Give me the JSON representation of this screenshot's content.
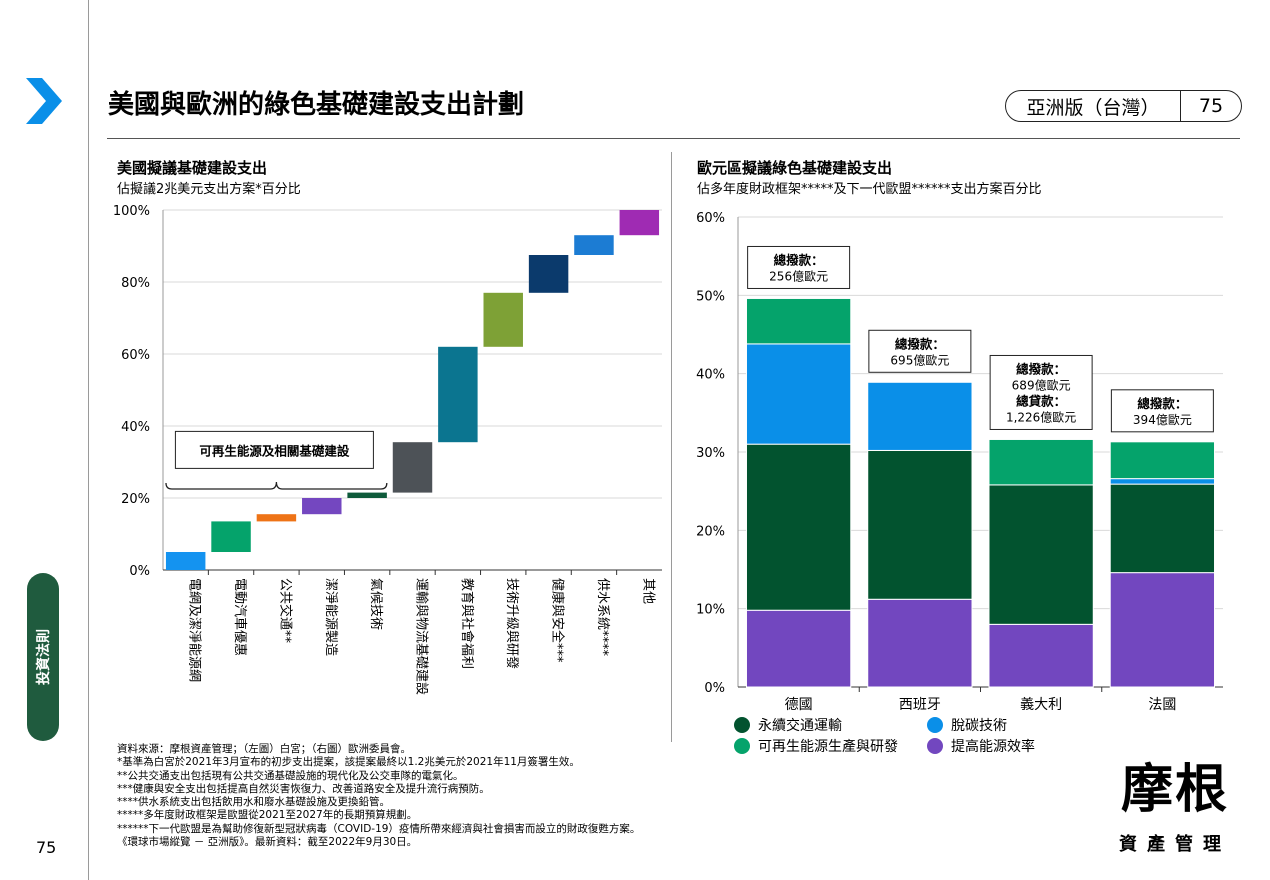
{
  "header": {
    "title": "美國與歐洲的綠色基礎建設支出計劃",
    "edition": "亞洲版（台灣）",
    "page": "75"
  },
  "sidebar": {
    "tab_label": "投資法則",
    "page_number": "75"
  },
  "colors": {
    "accent_blue": "#0a8fe8",
    "sidebar_tab": "#1f5b3e"
  },
  "left_chart": {
    "title": "美國擬議基礎建設支出",
    "subtitle": "佔擬議2兆美元支出方案*百分比",
    "bracket_label": "可再生能源及相關基礎建設"
  },
  "right_chart": {
    "title": "歐元區擬議綠色基礎建設支出",
    "subtitle": "佔多年度財政框架*****及下一代歐盟******支出方案百分比"
  },
  "chart_data": [
    {
      "type": "bar",
      "subtype": "waterfall",
      "ylim": [
        0,
        100
      ],
      "ytick_labels": [
        "0%",
        "20%",
        "40%",
        "60%",
        "80%",
        "100%"
      ],
      "grid": true,
      "categories": [
        "電網及潔淨能源網",
        "電動汽車優惠",
        "公共交通**",
        "潔淨能源製造",
        "氣候技術",
        "運輸與物流基礎建設",
        "教育與社會福利",
        "技術升級與研發",
        "健康與安全***",
        "供水系統****",
        "其他"
      ],
      "segments": [
        {
          "start": 0,
          "end": 5,
          "color": "#1493f0"
        },
        {
          "start": 5,
          "end": 13.5,
          "color": "#05a36b"
        },
        {
          "start": 13.5,
          "end": 15.5,
          "color": "#ee7316"
        },
        {
          "start": 15.5,
          "end": 20,
          "color": "#7447c0"
        },
        {
          "start": 20,
          "end": 21.5,
          "color": "#0e5a3a"
        },
        {
          "start": 21.5,
          "end": 35.5,
          "color": "#4d5257"
        },
        {
          "start": 35.5,
          "end": 62,
          "color": "#0b7590"
        },
        {
          "start": 62,
          "end": 77,
          "color": "#7ea136"
        },
        {
          "start": 77,
          "end": 87.5,
          "color": "#0b3a6c"
        },
        {
          "start": 87.5,
          "end": 93,
          "color": "#1c7cd3"
        },
        {
          "start": 93,
          "end": 100,
          "color": "#9f2bb3"
        }
      ]
    },
    {
      "type": "bar",
      "subtype": "stacked",
      "ylim": [
        0,
        60
      ],
      "ytick_labels": [
        "0%",
        "10%",
        "20%",
        "30%",
        "40%",
        "50%",
        "60%"
      ],
      "grid": true,
      "categories": [
        "德國",
        "西班牙",
        "義大利",
        "法國"
      ],
      "series": [
        {
          "name": "提高能源效率",
          "color": "#7247bf",
          "values": [
            9.8,
            11.2,
            8,
            14.6
          ]
        },
        {
          "name": "永續交通運輸",
          "color": "#02532f",
          "values": [
            21.2,
            19,
            17.8,
            11.3
          ]
        },
        {
          "name": "脫碳技術",
          "color": "#0a8fe8",
          "values": [
            12.8,
            8.7,
            0,
            0.7
          ]
        },
        {
          "name": "可再生能源生產與研發",
          "color": "#05a36b",
          "values": [
            5.8,
            0,
            5.8,
            4.7
          ]
        }
      ],
      "legend": [
        {
          "name": "永續交通運輸",
          "color": "#02532f"
        },
        {
          "name": "脫碳技術",
          "color": "#0a8fe8"
        },
        {
          "name": "可再生能源生產與研發",
          "color": "#05a36b"
        },
        {
          "name": "提高能源效率",
          "color": "#7247bf"
        }
      ],
      "annotations": [
        [
          "總撥款：",
          "256億歐元"
        ],
        [
          "總撥款：",
          "695億歐元"
        ],
        [
          "總撥款：",
          "689億歐元",
          "總貸款：",
          "1,226億歐元"
        ],
        [
          "總撥款：",
          "394億歐元"
        ]
      ]
    }
  ],
  "footnotes": [
    "資料來源：摩根資產管理；（左圖）白宮；（右圖）歐洲委員會。",
    "*基準為白宮於2021年3月宣布的初步支出提案，該提案最終以1.2兆美元於2021年11月簽署生效。",
    "**公共交通支出包括現有公共交通基礎設施的現代化及公交車隊的電氣化。",
    "***健康與安全支出包括提高自然災害恢復力、改善道路安全及提升流行病預防。",
    "****供水系統支出包括飲用水和廢水基礎設施及更換鉛管。",
    "*****多年度財政框架是歐盟從2021至2027年的長期預算規劃。",
    "******下一代歐盟是為幫助修復新型冠狀病毒（COVID-19）疫情所帶來經濟與社會損害而設立的財政復甦方案。",
    "《環球市場縱覽 － 亞洲版》。最新資料：截至2022年9月30日。"
  ],
  "logo": {
    "line1": "摩根",
    "line2": "資產管理"
  }
}
